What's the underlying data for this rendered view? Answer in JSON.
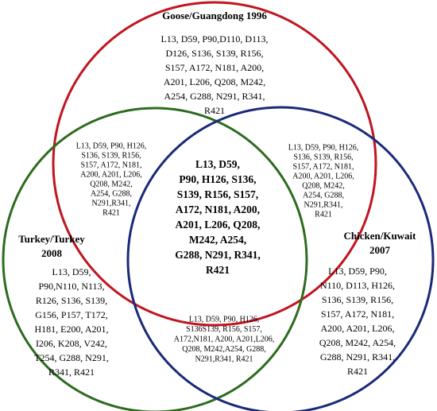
{
  "sets": [
    {
      "label": [
        "Goose/Guangdong 1996"
      ]
    },
    {
      "label": [
        "Turkey/Turkey",
        "2008"
      ]
    },
    {
      "label": [
        "Chicken/Kuwait",
        "2007"
      ]
    }
  ],
  "regions": {
    "goose_only": [
      "L13, D59, P90,D110, D113,",
      "D126, S136, S139, R156,",
      "S157, A172, N181, A200,",
      "A201, L206, Q208, M242,",
      "A254, G288, N291, R341,",
      "R421"
    ],
    "goose_turkey": [
      "L13, D59, P90, H126,",
      "S136, S139, R156,",
      "S157, A172, N181,",
      "A200, A201, L206,",
      "Q208, M242,",
      "A254, G288,",
      "N291,R341,",
      "R421"
    ],
    "goose_chicken": [
      "L13, D59, P90, H126,",
      "S136, S139, R156,",
      "S157, A172, N181,",
      "A200, A201, L206,",
      "Q208, M242,",
      "A254, G288,",
      "N291,R341,",
      "R421"
    ],
    "all_three": [
      "L13, D59,",
      "P90, H126, S136,",
      "S139, R156, S157,",
      "A172, N181, A200,",
      "A201, L206, Q208,",
      "M242, A254,",
      "G288, N291, R341,",
      "R421"
    ],
    "turkey_only": [
      "L13, D59,",
      "P90,N110, N113,",
      "R126, S136, S139,",
      "G156, P157, T172,",
      "H181, E200, A201,",
      "I206, K208, V242,",
      "T254, G288, N291,",
      "R341, R421"
    ],
    "chicken_only": [
      "L13, D59, P90,",
      "N110, D113, H126,",
      "S136, S139, R156,",
      "S157, A172, N181,",
      "A200, A201, L206,",
      "Q208, M242, A254,",
      "G288, N291, R341,",
      "R421"
    ],
    "turkey_chicken": [
      "L13, D59, P90, H126,",
      "S136S139, R156, S157,",
      "A172,N181, A200, A201,L206,",
      "Q208, M242,A254, G288,",
      "N291,R341, R421"
    ]
  }
}
